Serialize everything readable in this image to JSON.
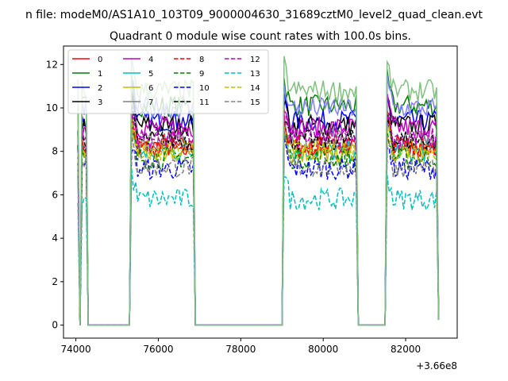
{
  "chart_data": {
    "type": "line",
    "suptitle": "n file: modeM0/AS1A10_103T09_9000004630_31689cztM0_level2_quad_clean.evt",
    "title": "Quadrant 0 module wise count rates with 100.0s bins.",
    "xlabel": "",
    "ylabel": "",
    "x_offset_label": "+3.66e8",
    "xlim": [
      73700,
      83250
    ],
    "ylim": [
      -0.6,
      12.85
    ],
    "xticks": [
      74000,
      76000,
      78000,
      80000,
      82000
    ],
    "yticks": [
      0,
      2,
      4,
      6,
      8,
      10,
      12
    ],
    "grid": false,
    "legend_position": "top-left",
    "legend_columns": 4,
    "plateaus": [
      [
        74150,
        74250
      ],
      [
        75350,
        76850
      ],
      [
        79050,
        80800
      ],
      [
        81550,
        82750
      ]
    ],
    "series": [
      {
        "name": "0",
        "color": "#ff0000",
        "dash": "solid",
        "level": 8.2
      },
      {
        "name": "1",
        "color": "#008000",
        "dash": "solid",
        "level": 10.1
      },
      {
        "name": "2",
        "color": "#0000ff",
        "dash": "solid",
        "level": 9.4
      },
      {
        "name": "3",
        "color": "#000000",
        "dash": "solid",
        "level": 9.2
      },
      {
        "name": "4",
        "color": "#bf00bf",
        "dash": "solid",
        "level": 9.1
      },
      {
        "name": "5",
        "color": "#00bfbf",
        "dash": "solid",
        "level": 8.0
      },
      {
        "name": "6",
        "color": "#bfbf00",
        "dash": "solid",
        "level": 8.0
      },
      {
        "name": "7",
        "color": "#808080",
        "dash": "solid",
        "level": 8.5
      },
      {
        "name": "8",
        "color": "#ff0000",
        "dash": "dashed",
        "level": 8.3
      },
      {
        "name": "9",
        "color": "#008000",
        "dash": "dashed",
        "level": 7.7
      },
      {
        "name": "10",
        "color": "#0000ff",
        "dash": "dashed",
        "level": 7.2
      },
      {
        "name": "11",
        "color": "#000000",
        "dash": "dashed",
        "level": 8.5
      },
      {
        "name": "12",
        "color": "#bf00bf",
        "dash": "dashed",
        "level": 8.6
      },
      {
        "name": "13",
        "color": "#00bfbf",
        "dash": "dashed",
        "level": 5.8
      },
      {
        "name": "14",
        "color": "#bfbf00",
        "dash": "dashed",
        "level": 8.0
      },
      {
        "name": "15",
        "color": "#808080",
        "dash": "dashed",
        "level": 7.3
      },
      {
        "name": "",
        "color": "#8080ff",
        "dash": "solid",
        "level": 10.0
      },
      {
        "name": "",
        "color": "#80c080",
        "dash": "solid",
        "level": 10.8
      }
    ]
  }
}
